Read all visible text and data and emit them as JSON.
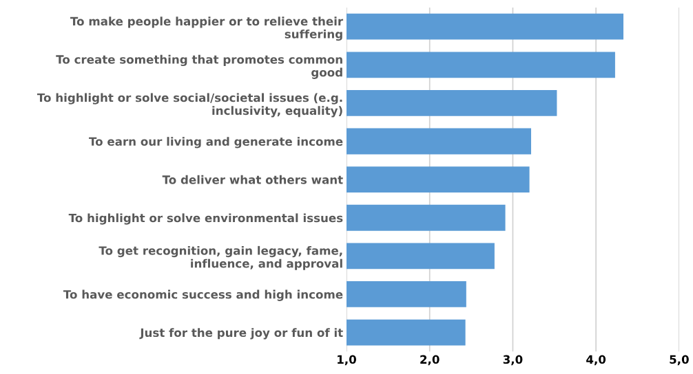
{
  "chart_data": {
    "type": "bar",
    "orientation": "horizontal",
    "categories": [
      "To make people happier or to relieve their\nsuffering",
      "To create something that promotes common\ngood",
      "To highlight or solve social/societal issues (e.g.\ninclusivity, equality)",
      "To earn our living and generate income",
      "To deliver what others want",
      "To highlight or solve environmental issues",
      "To get recognition, gain legacy, fame,\ninfluence, and approval",
      "To have economic success and high income",
      "Just for the pure joy or fun of it"
    ],
    "values": [
      4.33,
      4.23,
      3.53,
      3.22,
      3.2,
      2.91,
      2.78,
      2.44,
      2.43
    ],
    "color": "#5b9bd5",
    "xlim": [
      1,
      5
    ],
    "xticks": [
      {
        "value": 1,
        "label": "1,0"
      },
      {
        "value": 2,
        "label": "2,0"
      },
      {
        "value": 3,
        "label": "3,0"
      },
      {
        "value": 4,
        "label": "4,0"
      },
      {
        "value": 5,
        "label": "5,0"
      }
    ],
    "grid": "x"
  }
}
